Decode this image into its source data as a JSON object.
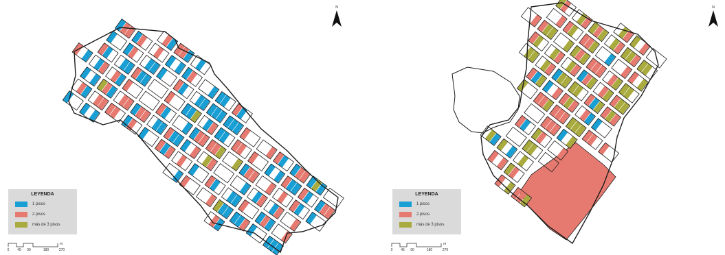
{
  "legend": {
    "title": "LEYENDA",
    "items": [
      {
        "label": "1 pisos",
        "color": "#1a9fd4"
      },
      {
        "label": "2 pisos",
        "color": "#e67a70"
      },
      {
        "label": "más de 3 pisos",
        "color": "#a9ab3e"
      }
    ]
  },
  "scale": {
    "ticks": [
      "0",
      "45",
      "90",
      "180",
      "270"
    ],
    "unit": "m"
  },
  "north_label": "N",
  "colors": {
    "outline": "#1c1c1c",
    "legend_bg": "#dadada"
  }
}
